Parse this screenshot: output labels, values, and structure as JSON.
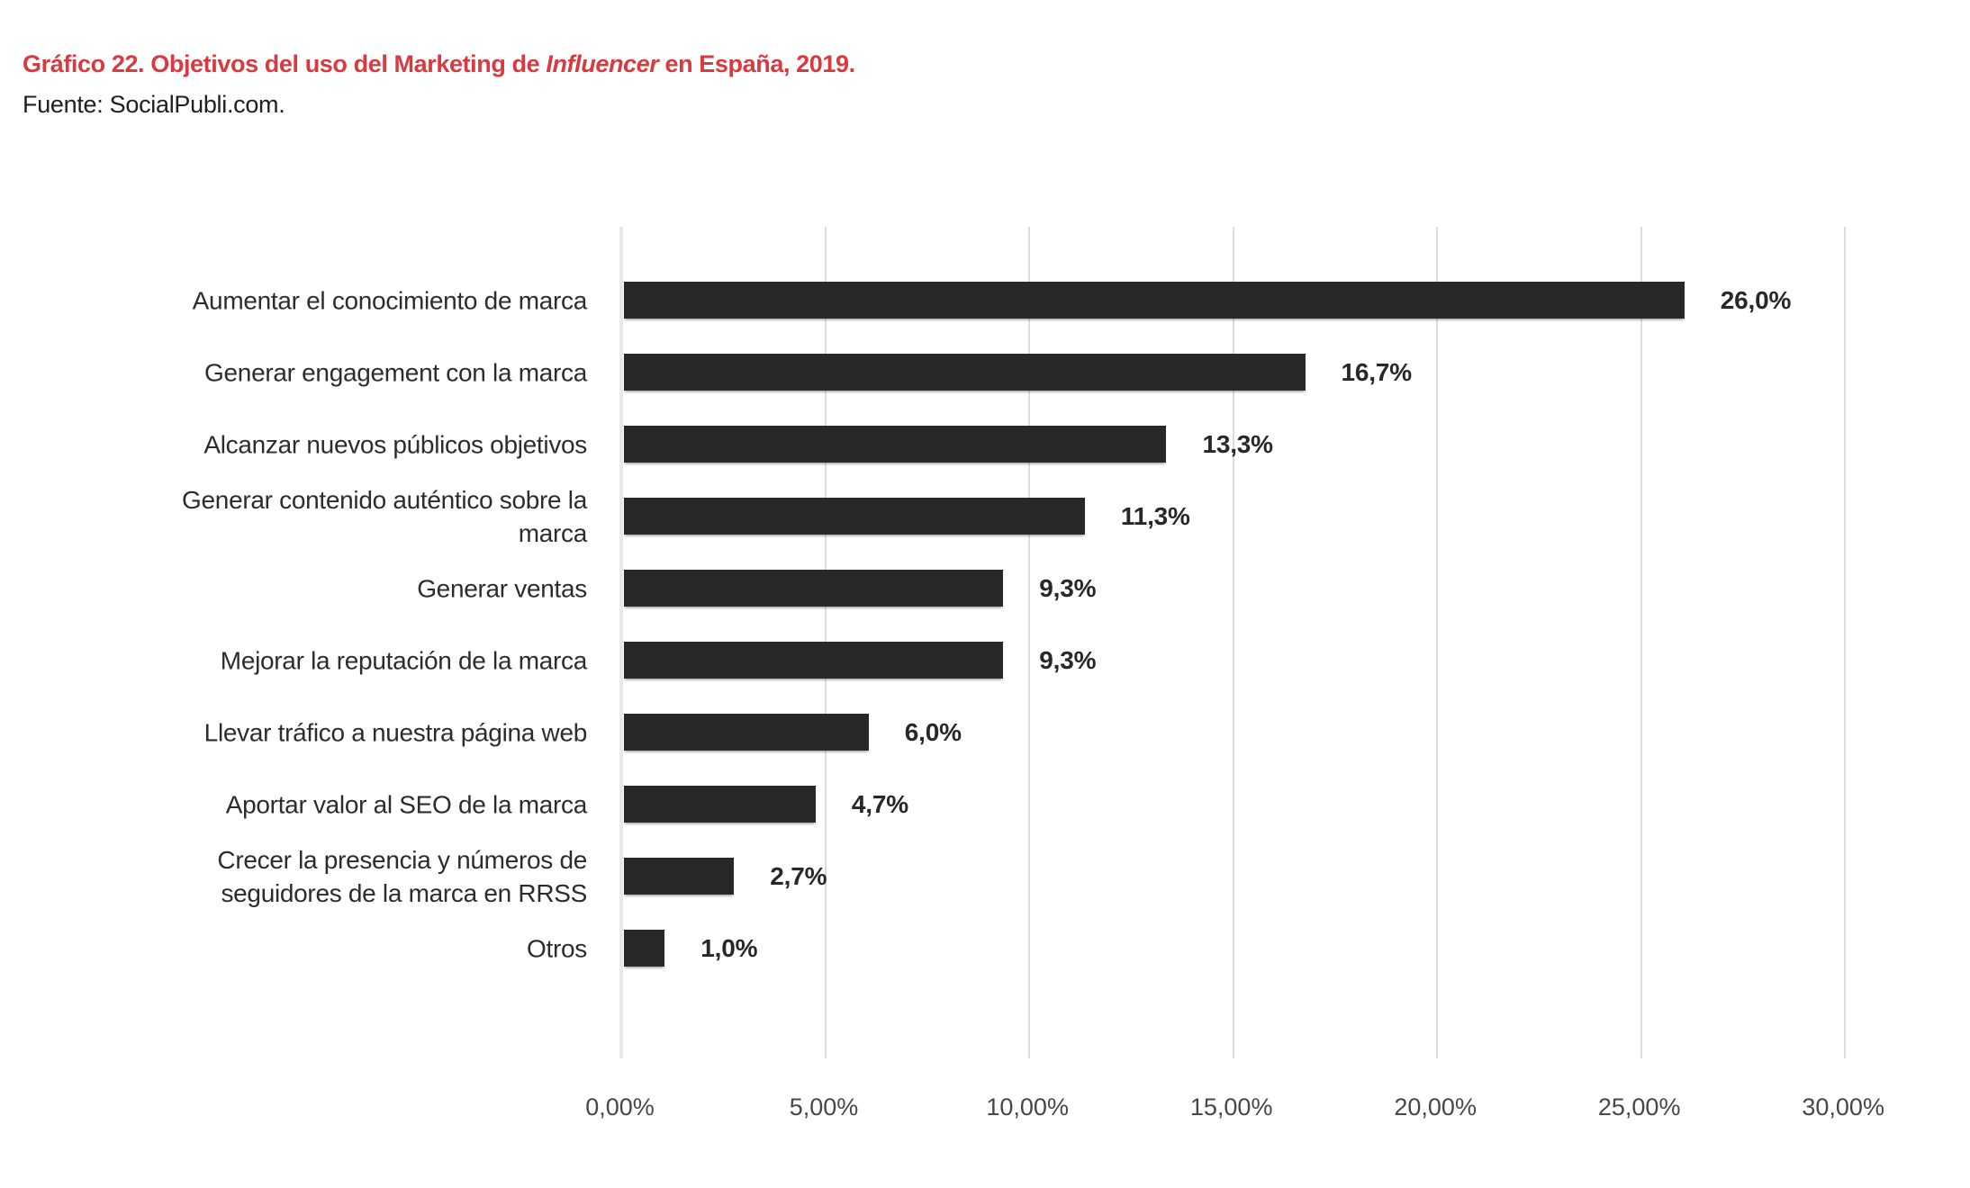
{
  "header": {
    "title_prefix": "Gráfico 22. Objetivos del uso del Marketing de ",
    "title_italic": "Influencer",
    "title_suffix": " en España, 2019.",
    "source": "Fuente: SocialPubli.com.",
    "title_color": "#d93a40"
  },
  "chart_data": {
    "type": "bar",
    "orientation": "horizontal",
    "title": "Gráfico 22. Objetivos del uso del Marketing de Influencer en España, 2019.",
    "source": "Fuente: SocialPubli.com.",
    "categories": [
      "Aumentar el conocimiento de marca",
      "Generar engagement con la marca",
      "Alcanzar nuevos públicos objetivos",
      "Generar contenido auténtico sobre la\nmarca",
      "Generar ventas",
      "Mejorar la reputación de la marca",
      "Llevar tráfico a nuestra página web",
      "Aportar valor al SEO de la marca",
      "Crecer la presencia y números de\nseguidores de la marca en RRSS",
      "Otros"
    ],
    "values": [
      26.0,
      16.7,
      13.3,
      11.3,
      9.3,
      9.3,
      6.0,
      4.7,
      2.7,
      1.0
    ],
    "value_labels": [
      "26,0%",
      "16,7%",
      "13,3%",
      "11,3%",
      "9,3%",
      "9,3%",
      "6,0%",
      "4,7%",
      "2,7%",
      "1,0%"
    ],
    "xlabel": "",
    "ylabel": "",
    "xlim": [
      0,
      30
    ],
    "x_ticks": [
      {
        "value": 0,
        "label": "0,00%"
      },
      {
        "value": 5,
        "label": "5,00%"
      },
      {
        "value": 10,
        "label": "10,00%"
      },
      {
        "value": 15,
        "label": "15,00%"
      },
      {
        "value": 20,
        "label": "20,00%"
      },
      {
        "value": 25,
        "label": "25,00%"
      },
      {
        "value": 30,
        "label": "30,00%"
      }
    ],
    "grid": true,
    "legend": "none",
    "bar_color": "#28282b",
    "gridline_color": "#dcdcdc",
    "axisline_color": "#e8e8e4",
    "category_label_color": "#2c2c2e",
    "value_label_color": "#28282b",
    "tick_label_color": "#47474a"
  }
}
